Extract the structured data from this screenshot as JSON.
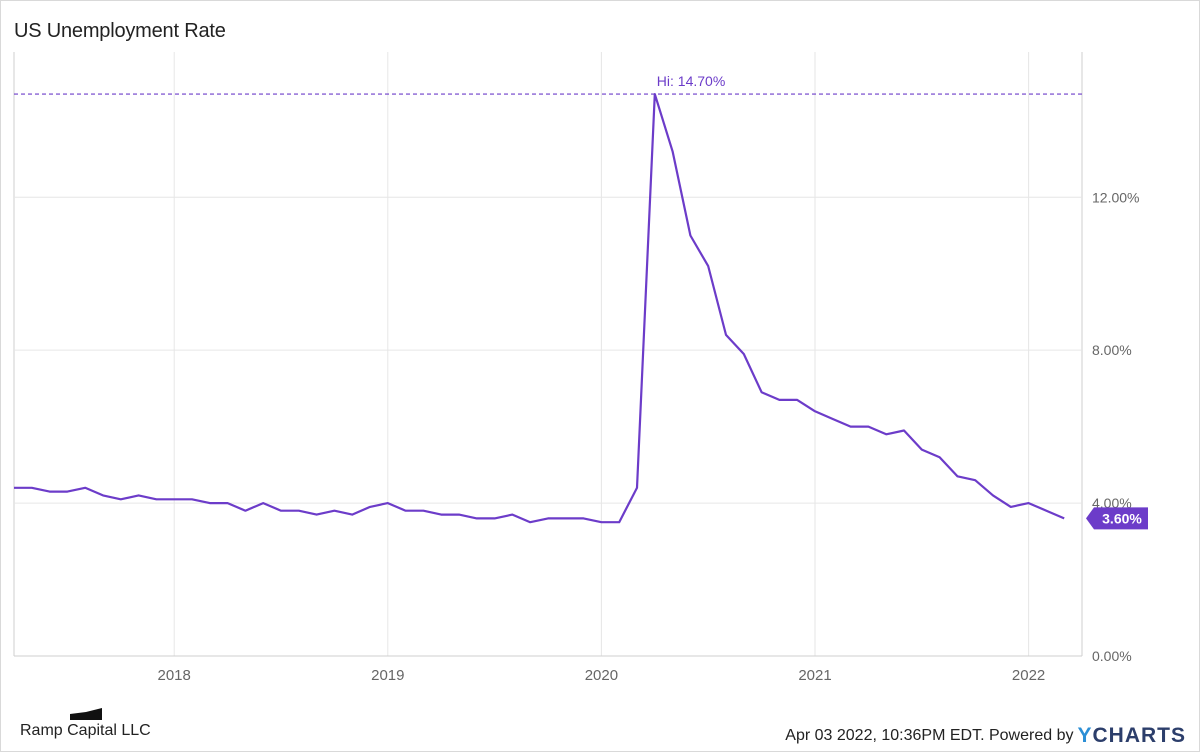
{
  "title": "US Unemployment Rate",
  "colors": {
    "line": "#6c3cc9",
    "grid": "#e6e6e6",
    "axis_text": "#666666"
  },
  "chart_data": {
    "type": "line",
    "title": "US Unemployment Rate",
    "xlabel": "",
    "ylabel": "",
    "x_tick_labels": [
      "2018",
      "2019",
      "2020",
      "2021",
      "2022"
    ],
    "y_tick_labels": [
      "0.00%",
      "4.00%",
      "8.00%",
      "12.00%"
    ],
    "y_ticks": [
      0,
      4,
      8,
      12
    ],
    "ylim": [
      0,
      15.8
    ],
    "xlim": [
      "2017-04",
      "2022-04"
    ],
    "grid": true,
    "series": [
      {
        "x": [
          "2017-04",
          "2017-05",
          "2017-06",
          "2017-07",
          "2017-08",
          "2017-09",
          "2017-10",
          "2017-11",
          "2017-12",
          "2018-01",
          "2018-02",
          "2018-03",
          "2018-04",
          "2018-05",
          "2018-06",
          "2018-07",
          "2018-08",
          "2018-09",
          "2018-10",
          "2018-11",
          "2018-12",
          "2019-01",
          "2019-02",
          "2019-03",
          "2019-04",
          "2019-05",
          "2019-06",
          "2019-07",
          "2019-08",
          "2019-09",
          "2019-10",
          "2019-11",
          "2019-12",
          "2020-01",
          "2020-02",
          "2020-03",
          "2020-04",
          "2020-05",
          "2020-06",
          "2020-07",
          "2020-08",
          "2020-09",
          "2020-10",
          "2020-11",
          "2020-12",
          "2021-01",
          "2021-02",
          "2021-03",
          "2021-04",
          "2021-05",
          "2021-06",
          "2021-07",
          "2021-08",
          "2021-09",
          "2021-10",
          "2021-11",
          "2021-12",
          "2022-01",
          "2022-02",
          "2022-03"
        ],
        "values": [
          4.4,
          4.4,
          4.3,
          4.3,
          4.4,
          4.2,
          4.1,
          4.2,
          4.1,
          4.1,
          4.1,
          4.0,
          4.0,
          3.8,
          4.0,
          3.8,
          3.8,
          3.7,
          3.8,
          3.7,
          3.9,
          4.0,
          3.8,
          3.8,
          3.7,
          3.7,
          3.6,
          3.6,
          3.7,
          3.5,
          3.6,
          3.6,
          3.6,
          3.5,
          3.5,
          4.4,
          14.7,
          13.2,
          11.0,
          10.2,
          8.4,
          7.9,
          6.9,
          6.7,
          6.7,
          6.4,
          6.2,
          6.0,
          6.0,
          5.8,
          5.9,
          5.4,
          5.2,
          4.7,
          4.6,
          4.2,
          3.9,
          4.0,
          3.8,
          3.6
        ]
      }
    ],
    "annotations": {
      "high_label": "Hi: 14.70%",
      "high_value": 14.7,
      "last_value_label": "3.60%"
    }
  },
  "footer": {
    "source": "Ramp Capital LLC",
    "timestamp": "Apr 03 2022, 10:36PM EDT.",
    "powered_by": "Powered by",
    "logo_y": "Y",
    "logo_rest": "CHARTS"
  }
}
